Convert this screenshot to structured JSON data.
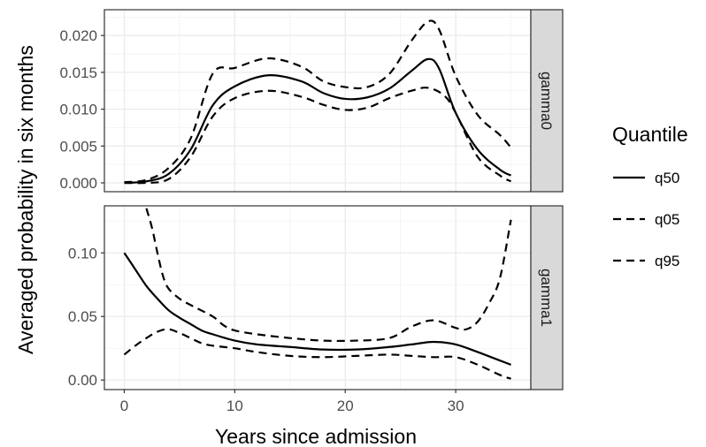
{
  "chart_data": {
    "type": "line",
    "xlabel": "Years since admission",
    "ylabel": "Averaged probability in six months",
    "xlim": [
      -1.8,
      36.8
    ],
    "x_ticks": [
      0,
      10,
      20,
      30
    ],
    "x_tick_labels": [
      "0",
      "10",
      "20",
      "30"
    ],
    "grid": true,
    "legend": {
      "title": "Quantile",
      "placement": "right",
      "entries": [
        {
          "label": "q50",
          "linestyle": "solid"
        },
        {
          "label": "q05",
          "linestyle": "dashed"
        },
        {
          "label": "q95",
          "linestyle": "dashed"
        }
      ]
    },
    "panels": [
      {
        "strip": "gamma0",
        "ylim": [
          -0.0012,
          0.0235
        ],
        "y_ticks": [
          0,
          0.005,
          0.01,
          0.015,
          0.02
        ],
        "y_tick_labels": [
          "0.000",
          "0.005",
          "0.010",
          "0.015",
          "0.020"
        ],
        "series": [
          {
            "name": "q50",
            "dash": "solid",
            "points": [
              [
                0,
                0.0
              ],
              [
                2,
                0.0002
              ],
              [
                4,
                0.0012
              ],
              [
                6,
                0.0045
              ],
              [
                8,
                0.0105
              ],
              [
                10,
                0.0131
              ],
              [
                13,
                0.0146
              ],
              [
                16,
                0.0138
              ],
              [
                18,
                0.0122
              ],
              [
                20,
                0.0114
              ],
              [
                22,
                0.0116
              ],
              [
                24,
                0.0128
              ],
              [
                26,
                0.0152
              ],
              [
                27.5,
                0.0168
              ],
              [
                28.5,
                0.0155
              ],
              [
                30,
                0.0095
              ],
              [
                32,
                0.0045
              ],
              [
                34,
                0.0018
              ],
              [
                35,
                0.001
              ]
            ]
          },
          {
            "name": "q05",
            "dash": "dashed",
            "points": [
              [
                0,
                0.0
              ],
              [
                2,
                0.0
              ],
              [
                4,
                0.0005
              ],
              [
                6,
                0.0035
              ],
              [
                8,
                0.009
              ],
              [
                10,
                0.0115
              ],
              [
                13,
                0.0125
              ],
              [
                16,
                0.0117
              ],
              [
                18,
                0.0106
              ],
              [
                20,
                0.0099
              ],
              [
                22,
                0.0102
              ],
              [
                24,
                0.0115
              ],
              [
                26,
                0.0125
              ],
              [
                27.5,
                0.0129
              ],
              [
                29,
                0.0118
              ],
              [
                30,
                0.0095
              ],
              [
                32,
                0.0035
              ],
              [
                34,
                0.001
              ],
              [
                35,
                0.0002
              ]
            ]
          },
          {
            "name": "q95",
            "dash": "dashed",
            "points": [
              [
                0,
                0.0001
              ],
              [
                2,
                0.0004
              ],
              [
                4,
                0.002
              ],
              [
                6,
                0.006
              ],
              [
                8,
                0.0148
              ],
              [
                10,
                0.0156
              ],
              [
                13,
                0.0169
              ],
              [
                16,
                0.0158
              ],
              [
                18,
                0.0138
              ],
              [
                20,
                0.013
              ],
              [
                22,
                0.013
              ],
              [
                24,
                0.0148
              ],
              [
                26,
                0.0193
              ],
              [
                27.5,
                0.0219
              ],
              [
                28.5,
                0.0208
              ],
              [
                30,
                0.0145
              ],
              [
                32,
                0.0092
              ],
              [
                34,
                0.0065
              ],
              [
                35,
                0.0048
              ]
            ]
          }
        ]
      },
      {
        "strip": "gamma1",
        "ylim": [
          -0.0075,
          0.137
        ],
        "y_ticks": [
          0,
          0.05,
          0.1
        ],
        "y_tick_labels": [
          "0.00",
          "0.05",
          "0.10"
        ],
        "series": [
          {
            "name": "q50",
            "dash": "solid",
            "points": [
              [
                0,
                0.1
              ],
              [
                1,
                0.087
              ],
              [
                2,
                0.074
              ],
              [
                3,
                0.064
              ],
              [
                4,
                0.055
              ],
              [
                5,
                0.049
              ],
              [
                6,
                0.044
              ],
              [
                7,
                0.039
              ],
              [
                8,
                0.036
              ],
              [
                10,
                0.031
              ],
              [
                12,
                0.028
              ],
              [
                15,
                0.026
              ],
              [
                18,
                0.024
              ],
              [
                21,
                0.024
              ],
              [
                24,
                0.026
              ],
              [
                26,
                0.028
              ],
              [
                28,
                0.03
              ],
              [
                30,
                0.028
              ],
              [
                32,
                0.022
              ],
              [
                35,
                0.012
              ]
            ]
          },
          {
            "name": "q05",
            "dash": "dashed",
            "points": [
              [
                0,
                0.02
              ],
              [
                1,
                0.027
              ],
              [
                2,
                0.033
              ],
              [
                3,
                0.038
              ],
              [
                4,
                0.04
              ],
              [
                5,
                0.037
              ],
              [
                6,
                0.033
              ],
              [
                7,
                0.029
              ],
              [
                8,
                0.027
              ],
              [
                10,
                0.025
              ],
              [
                12,
                0.022
              ],
              [
                15,
                0.019
              ],
              [
                18,
                0.018
              ],
              [
                21,
                0.019
              ],
              [
                24,
                0.02
              ],
              [
                26,
                0.019
              ],
              [
                28,
                0.018
              ],
              [
                30,
                0.018
              ],
              [
                32,
                0.012
              ],
              [
                34,
                0.004
              ],
              [
                35,
                0.001
              ]
            ]
          },
          {
            "name": "q95",
            "dash": "dashed",
            "points": [
              [
                2,
                0.135
              ],
              [
                2.5,
                0.12
              ],
              [
                3,
                0.1
              ],
              [
                3.5,
                0.082
              ],
              [
                4,
                0.072
              ],
              [
                5,
                0.064
              ],
              [
                6,
                0.059
              ],
              [
                8,
                0.05
              ],
              [
                9,
                0.043
              ],
              [
                10,
                0.039
              ],
              [
                12,
                0.036
              ],
              [
                15,
                0.033
              ],
              [
                18,
                0.031
              ],
              [
                21,
                0.031
              ],
              [
                24,
                0.033
              ],
              [
                26,
                0.042
              ],
              [
                28,
                0.047
              ],
              [
                30,
                0.041
              ],
              [
                31,
                0.04
              ],
              [
                32,
                0.046
              ],
              [
                33,
                0.06
              ],
              [
                34,
                0.08
              ],
              [
                35,
                0.126
              ]
            ]
          }
        ]
      }
    ]
  }
}
